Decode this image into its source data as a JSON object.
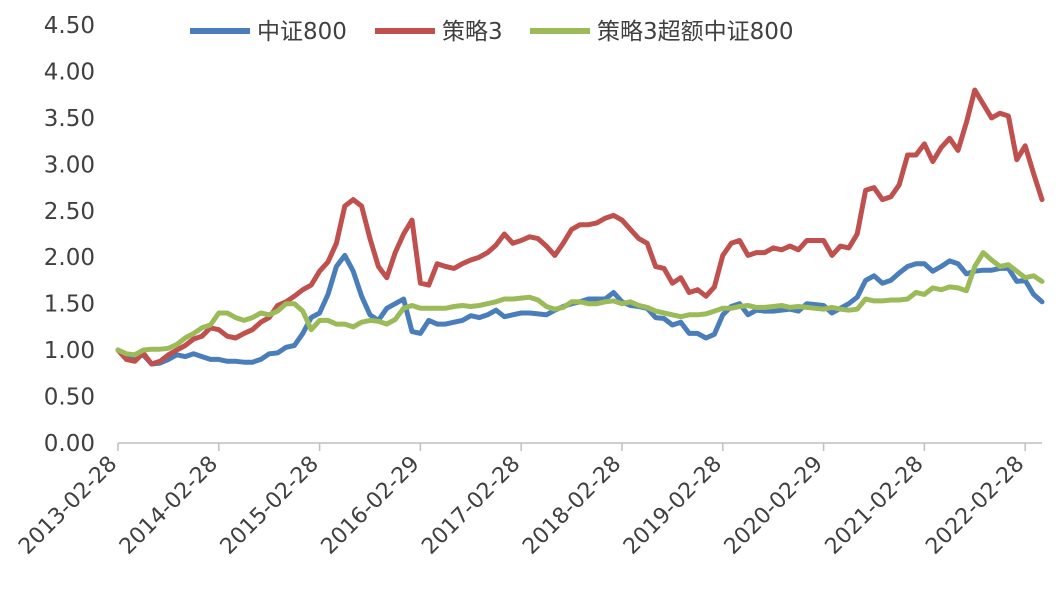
{
  "chart_data": {
    "type": "line",
    "title": "",
    "xlabel": "",
    "ylabel": "",
    "ylim": [
      0,
      4.5
    ],
    "y_ticks": [
      "0.00",
      "0.50",
      "1.00",
      "1.50",
      "2.00",
      "2.50",
      "3.00",
      "3.50",
      "4.00",
      "4.50"
    ],
    "x_tick_labels": [
      "2013-02-28",
      "2014-02-28",
      "2015-02-28",
      "2016-02-29",
      "2017-02-28",
      "2018-02-28",
      "2019-02-28",
      "2020-02-29",
      "2021-02-28",
      "2022-02-28"
    ],
    "x_tick_months": [
      0,
      12,
      24,
      36,
      48,
      60,
      72,
      84,
      96,
      108
    ],
    "x_range": [
      0,
      110
    ],
    "grid": false,
    "legend_position": "top",
    "series": [
      {
        "name": "中证800",
        "color": "#4a7ebb",
        "values": [
          1.0,
          0.93,
          0.93,
          0.95,
          0.85,
          0.86,
          0.9,
          0.95,
          0.93,
          0.96,
          0.93,
          0.9,
          0.9,
          0.88,
          0.88,
          0.87,
          0.87,
          0.9,
          0.96,
          0.97,
          1.03,
          1.05,
          1.18,
          1.35,
          1.4,
          1.6,
          1.9,
          2.02,
          1.85,
          1.58,
          1.38,
          1.32,
          1.45,
          1.5,
          1.55,
          1.2,
          1.18,
          1.32,
          1.28,
          1.28,
          1.3,
          1.32,
          1.37,
          1.35,
          1.38,
          1.43,
          1.36,
          1.38,
          1.4,
          1.4,
          1.39,
          1.38,
          1.43,
          1.47,
          1.5,
          1.52,
          1.55,
          1.55,
          1.55,
          1.62,
          1.52,
          1.48,
          1.47,
          1.45,
          1.35,
          1.34,
          1.27,
          1.3,
          1.18,
          1.18,
          1.13,
          1.17,
          1.38,
          1.47,
          1.5,
          1.38,
          1.43,
          1.42,
          1.42,
          1.43,
          1.44,
          1.42,
          1.5,
          1.49,
          1.48,
          1.4,
          1.45,
          1.5,
          1.57,
          1.75,
          1.8,
          1.72,
          1.75,
          1.83,
          1.9,
          1.93,
          1.93,
          1.85,
          1.9,
          1.96,
          1.93,
          1.82,
          1.85,
          1.86,
          1.86,
          1.88,
          1.88,
          1.74,
          1.75,
          1.6,
          1.52
        ]
      },
      {
        "name": "策略3",
        "color": "#c0504d",
        "values": [
          1.0,
          0.9,
          0.88,
          0.97,
          0.85,
          0.88,
          0.95,
          1.0,
          1.05,
          1.12,
          1.15,
          1.24,
          1.22,
          1.15,
          1.13,
          1.18,
          1.22,
          1.3,
          1.35,
          1.48,
          1.52,
          1.58,
          1.65,
          1.7,
          1.85,
          1.95,
          2.15,
          2.55,
          2.62,
          2.55,
          2.2,
          1.9,
          1.78,
          2.05,
          2.25,
          2.4,
          1.72,
          1.7,
          1.93,
          1.9,
          1.88,
          1.93,
          1.97,
          2.0,
          2.05,
          2.13,
          2.25,
          2.15,
          2.18,
          2.22,
          2.2,
          2.12,
          2.02,
          2.15,
          2.3,
          2.35,
          2.35,
          2.37,
          2.42,
          2.45,
          2.4,
          2.3,
          2.2,
          2.15,
          1.9,
          1.88,
          1.72,
          1.78,
          1.62,
          1.65,
          1.58,
          1.68,
          2.02,
          2.15,
          2.18,
          2.02,
          2.05,
          2.05,
          2.1,
          2.08,
          2.12,
          2.08,
          2.18,
          2.18,
          2.18,
          2.02,
          2.12,
          2.1,
          2.25,
          2.72,
          2.75,
          2.62,
          2.65,
          2.78,
          3.1,
          3.1,
          3.22,
          3.03,
          3.18,
          3.28,
          3.15,
          3.45,
          3.8,
          3.65,
          3.5,
          3.55,
          3.52,
          3.05,
          3.2,
          2.9,
          2.62
        ]
      },
      {
        "name": "策略3超额中证800",
        "color": "#9bbb59",
        "values": [
          1.0,
          0.96,
          0.95,
          1.0,
          1.01,
          1.01,
          1.02,
          1.06,
          1.13,
          1.18,
          1.24,
          1.27,
          1.4,
          1.4,
          1.35,
          1.32,
          1.35,
          1.4,
          1.38,
          1.42,
          1.5,
          1.5,
          1.42,
          1.22,
          1.32,
          1.32,
          1.28,
          1.28,
          1.25,
          1.3,
          1.32,
          1.31,
          1.28,
          1.33,
          1.45,
          1.48,
          1.45,
          1.45,
          1.45,
          1.45,
          1.47,
          1.48,
          1.47,
          1.48,
          1.5,
          1.52,
          1.55,
          1.55,
          1.56,
          1.57,
          1.54,
          1.47,
          1.44,
          1.46,
          1.52,
          1.52,
          1.5,
          1.5,
          1.52,
          1.53,
          1.5,
          1.52,
          1.48,
          1.46,
          1.42,
          1.4,
          1.38,
          1.36,
          1.38,
          1.38,
          1.39,
          1.42,
          1.45,
          1.45,
          1.47,
          1.48,
          1.46,
          1.46,
          1.47,
          1.48,
          1.46,
          1.47,
          1.46,
          1.45,
          1.44,
          1.46,
          1.44,
          1.43,
          1.44,
          1.55,
          1.53,
          1.53,
          1.54,
          1.54,
          1.55,
          1.62,
          1.6,
          1.67,
          1.65,
          1.68,
          1.67,
          1.64,
          1.9,
          2.05,
          1.97,
          1.9,
          1.92,
          1.85,
          1.78,
          1.8,
          1.74
        ]
      }
    ]
  }
}
